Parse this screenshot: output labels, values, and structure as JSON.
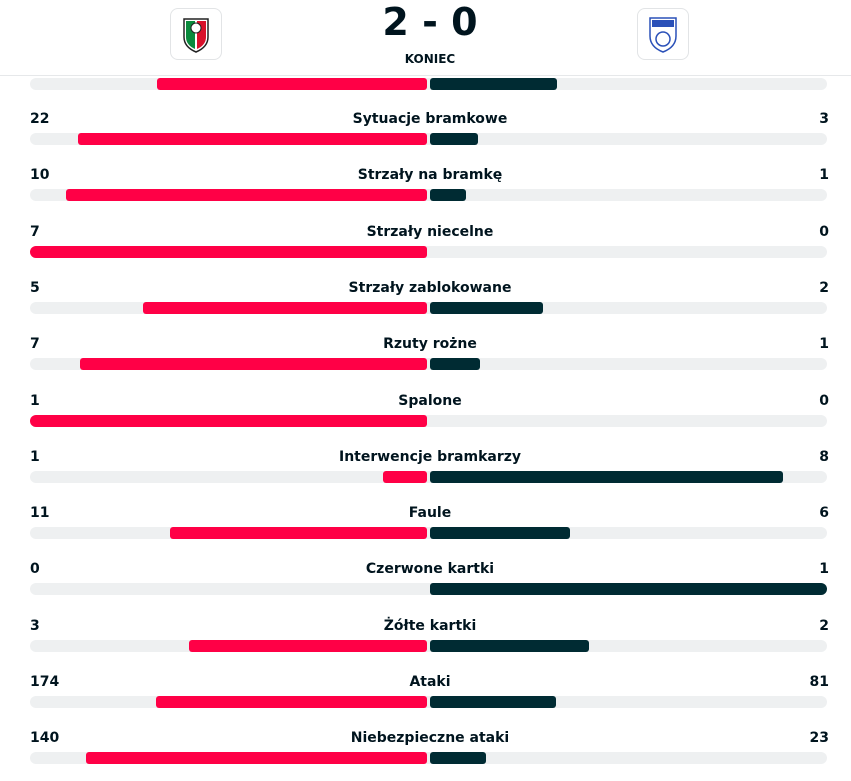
{
  "header": {
    "home_score": "2",
    "separator": "-",
    "away_score": "0",
    "status": "KONIEC"
  },
  "stats": [
    {
      "name": "Sytuacje bramkowe",
      "home": 22,
      "away": 3
    },
    {
      "name": "Strzały na bramkę",
      "home": 10,
      "away": 1
    },
    {
      "name": "Strzały niecelne",
      "home": 7,
      "away": 0
    },
    {
      "name": "Strzały zablokowane",
      "home": 5,
      "away": 2
    },
    {
      "name": "Rzuty rożne",
      "home": 7,
      "away": 1
    },
    {
      "name": "Spalone",
      "home": 1,
      "away": 0
    },
    {
      "name": "Interwencje bramkarzy",
      "home": 1,
      "away": 8
    },
    {
      "name": "Faule",
      "home": 11,
      "away": 6
    },
    {
      "name": "Czerwone kartki",
      "home": 0,
      "away": 1
    },
    {
      "name": "Żółte kartki",
      "home": 3,
      "away": 2
    },
    {
      "name": "Ataki",
      "home": 174,
      "away": 81
    },
    {
      "name": "Niebezpieczne ataki",
      "home": 140,
      "away": 23
    }
  ]
}
